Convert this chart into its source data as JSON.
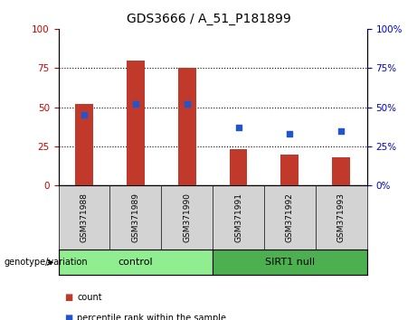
{
  "title": "GDS3666 / A_51_P181899",
  "samples": [
    "GSM371988",
    "GSM371989",
    "GSM371990",
    "GSM371991",
    "GSM371992",
    "GSM371993"
  ],
  "counts": [
    52,
    80,
    75,
    23,
    20,
    18
  ],
  "percentiles": [
    45,
    52,
    52,
    37,
    33,
    35
  ],
  "ylim_left": [
    0,
    100
  ],
  "ylim_right": [
    0,
    100
  ],
  "yticks": [
    0,
    25,
    50,
    75,
    100
  ],
  "bar_color": "#c0392b",
  "dot_color": "#2255cc",
  "bar_width": 0.35,
  "groups": [
    {
      "label": "control",
      "start": 0,
      "end": 3,
      "color": "#90ee90"
    },
    {
      "label": "SIRT1 null",
      "start": 3,
      "end": 6,
      "color": "#4caf50"
    }
  ],
  "group_label_prefix": "genotype/variation",
  "legend_count_label": "count",
  "legend_pct_label": "percentile rank within the sample",
  "title_fontsize": 10,
  "axis_label_color_left": "#cc0000",
  "axis_label_color_right": "#0000cc",
  "tick_area_bg": "#d3d3d3",
  "grid_style": "dotted"
}
